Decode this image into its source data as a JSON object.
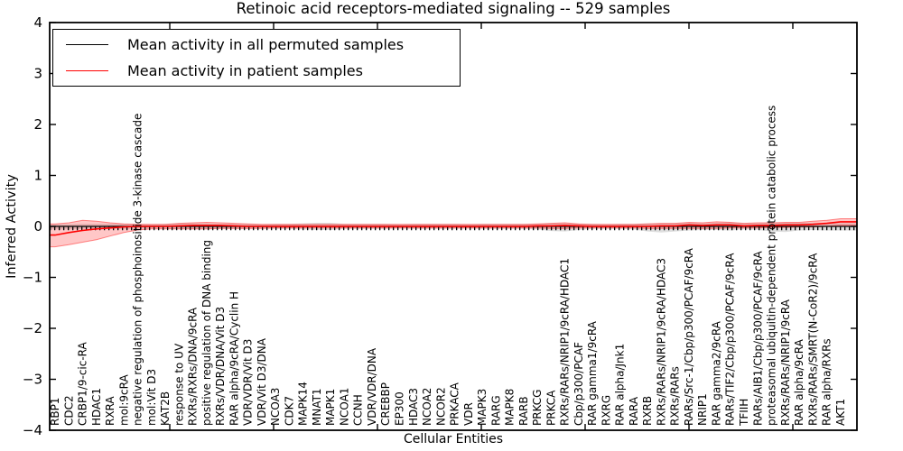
{
  "figure": {
    "title": "Retinoic acid receptors-mediated signaling -- 529 samples",
    "xlabel": "Cellular Entities",
    "ylabel": "Inferred Activity"
  },
  "chart_data": {
    "type": "line",
    "title": "Retinoic acid receptors-mediated signaling -- 529 samples",
    "xlabel": "Cellular Entities",
    "ylabel": "Inferred Activity",
    "ylim": [
      -4,
      4
    ],
    "yticks": [
      -4,
      -3,
      -2,
      -1,
      0,
      1,
      2,
      3,
      4
    ],
    "grid": false,
    "legend_position": "upper left",
    "legend": [
      {
        "label": "Mean activity in all permuted samples",
        "color": "#000000"
      },
      {
        "label": "Mean activity in patient samples",
        "color": "#ff0000"
      }
    ],
    "colors": {
      "permuted_line": "#000000",
      "permuted_band": "rgba(160,160,160,0.35)",
      "patient_line": "#ff0000",
      "patient_band": "rgba(255,0,0,0.22)",
      "patient_band_edge": "rgba(255,0,0,0.45)"
    },
    "categories": [
      "RBP1",
      "CDC2",
      "CRBP1/9-cic-RA",
      "HDAC1",
      "RXRA",
      "mol:9cRA",
      "negative regulation of phosphoinositide 3-kinase cascade",
      "mol:Vit D3",
      "KAT2B",
      "response to UV",
      "RXRs/RXRs/DNA/9cRA",
      "positive regulation of DNA binding",
      "RXRs/VDR/DNA/Vit D3",
      "RAR alpha/9cRA/Cyclin H",
      "VDR/VDR/Vit D3",
      "VDR/Vit D3/DNA",
      "NCOA3",
      "CDK7",
      "MAPK14",
      "MNAT1",
      "MAPK1",
      "NCOA1",
      "CCNH",
      "VDR/VDR/DNA",
      "CREBBP",
      "EP300",
      "HDAC3",
      "NCOA2",
      "NCOR2",
      "PRKACA",
      "VDR",
      "MAPK3",
      "RARG",
      "MAPK8",
      "RARB",
      "PRKCG",
      "PRKCA",
      "RXRs/RARs/NRIP1/9cRA/HDAC1",
      "Cbp/p300/PCAF",
      "RAR gamma1/9cRA",
      "RXRG",
      "RAR alpha/Jnk1",
      "RARA",
      "RXRB",
      "RXRs/RARs/NRIP1/9cRA/HDAC3",
      "RXRs/RARs",
      "RARs/Src-1/Cbp/p300/PCAF/9cRA",
      "NRIP1",
      "RAR gamma2/9cRA",
      "RARs/TIF2/Cbp/p300/PCAF/9cRA",
      "TFIIH",
      "RARs/AIB1/Cbp/p300/PCAF/9cRA",
      "proteasomal ubiquitin-dependent protein catabolic process",
      "RXRs/RARs/NRIP1/9cRA",
      "RAR alpha/9cRA",
      "RXRs/RARs/SMRT(N-CoR2)/9cRA",
      "RAR alpha/RXRs",
      "AKT1"
    ],
    "series": [
      {
        "name": "Mean activity in all permuted samples",
        "values": [
          0,
          0,
          0,
          0,
          0,
          0,
          0,
          0,
          0,
          0,
          0,
          0,
          0,
          0,
          0,
          0,
          0,
          0,
          0,
          0,
          0,
          0,
          0,
          0,
          0,
          0,
          0,
          0,
          0,
          0,
          0,
          0,
          0,
          0,
          0,
          0,
          0,
          0,
          0,
          0,
          0,
          0,
          0,
          0,
          0,
          0,
          0,
          0,
          0,
          0,
          0,
          0,
          0,
          0,
          0,
          0,
          0,
          0
        ],
        "band_upper": [
          0.04,
          0.04,
          0.05,
          0.05,
          0.05,
          0.05,
          0.05,
          0.04,
          0.05,
          0.06,
          0.06,
          0.06,
          0.05,
          0.05,
          0.05,
          0.04,
          0.05,
          0.05,
          0.06,
          0.07,
          0.07,
          0.05,
          0.05,
          0.05,
          0.05,
          0.04,
          0.05,
          0.05,
          0.05,
          0.05,
          0.04,
          0.05,
          0.05,
          0.05,
          0.05,
          0.05,
          0.06,
          0.06,
          0.05,
          0.05,
          0.04,
          0.05,
          0.05,
          0.06,
          0.06,
          0.06,
          0.07,
          0.06,
          0.07,
          0.08,
          0.06,
          0.06,
          0.07,
          0.07,
          0.07,
          0.07,
          0.06,
          0.06
        ],
        "band_lower": [
          -0.06,
          -0.06,
          -0.05,
          -0.05,
          -0.05,
          -0.05,
          -0.05,
          -0.04,
          -0.05,
          -0.06,
          -0.06,
          -0.06,
          -0.05,
          -0.05,
          -0.05,
          -0.04,
          -0.05,
          -0.05,
          -0.06,
          -0.07,
          -0.07,
          -0.05,
          -0.05,
          -0.05,
          -0.05,
          -0.04,
          -0.05,
          -0.05,
          -0.05,
          -0.05,
          -0.04,
          -0.05,
          -0.05,
          -0.05,
          -0.05,
          -0.06,
          -0.09,
          -0.1,
          -0.07,
          -0.05,
          -0.05,
          -0.05,
          -0.06,
          -0.1,
          -0.12,
          -0.1,
          -0.08,
          -0.07,
          -0.07,
          -0.08,
          -0.06,
          -0.07,
          -0.1,
          -0.11,
          -0.08,
          -0.07,
          -0.08,
          -0.08
        ]
      },
      {
        "name": "Mean activity in patient samples",
        "values": [
          -0.17,
          -0.12,
          -0.08,
          -0.05,
          -0.03,
          -0.01,
          0.0,
          0.0,
          0.0,
          0.01,
          0.02,
          0.02,
          0.02,
          0.01,
          0.0,
          0.0,
          0.0,
          0.0,
          0.0,
          0.0,
          0.0,
          0.0,
          0.0,
          0.0,
          0.0,
          0.0,
          0.0,
          0.0,
          0.0,
          0.0,
          0.0,
          0.0,
          0.0,
          0.0,
          0.0,
          0.01,
          0.01,
          0.02,
          0.01,
          0.0,
          0.0,
          0.0,
          0.0,
          0.0,
          0.01,
          0.01,
          0.03,
          0.02,
          0.03,
          0.03,
          0.01,
          0.02,
          0.02,
          0.03,
          0.03,
          0.04,
          0.06,
          0.09
        ],
        "band_upper": [
          0.05,
          0.07,
          0.12,
          0.1,
          0.07,
          0.05,
          0.04,
          0.04,
          0.04,
          0.06,
          0.07,
          0.08,
          0.07,
          0.06,
          0.05,
          0.04,
          0.04,
          0.04,
          0.04,
          0.04,
          0.04,
          0.04,
          0.04,
          0.04,
          0.04,
          0.04,
          0.04,
          0.04,
          0.04,
          0.04,
          0.04,
          0.04,
          0.04,
          0.04,
          0.04,
          0.05,
          0.06,
          0.07,
          0.05,
          0.04,
          0.04,
          0.04,
          0.04,
          0.05,
          0.06,
          0.06,
          0.08,
          0.07,
          0.09,
          0.08,
          0.06,
          0.07,
          0.07,
          0.08,
          0.08,
          0.1,
          0.12,
          0.15
        ],
        "band_lower": [
          -0.4,
          -0.36,
          -0.31,
          -0.26,
          -0.19,
          -0.12,
          -0.07,
          -0.05,
          -0.05,
          -0.05,
          -0.05,
          -0.05,
          -0.04,
          -0.04,
          -0.04,
          -0.04,
          -0.03,
          -0.03,
          -0.03,
          -0.03,
          -0.03,
          -0.03,
          -0.03,
          -0.03,
          -0.03,
          -0.03,
          -0.03,
          -0.03,
          -0.03,
          -0.03,
          -0.03,
          -0.03,
          -0.03,
          -0.03,
          -0.03,
          -0.03,
          -0.04,
          -0.04,
          -0.03,
          -0.03,
          -0.03,
          -0.03,
          -0.03,
          -0.04,
          -0.04,
          -0.04,
          -0.04,
          -0.04,
          -0.04,
          -0.03,
          -0.03,
          -0.03,
          -0.02,
          -0.02,
          -0.01,
          -0.01,
          0.0,
          0.02
        ]
      }
    ]
  }
}
